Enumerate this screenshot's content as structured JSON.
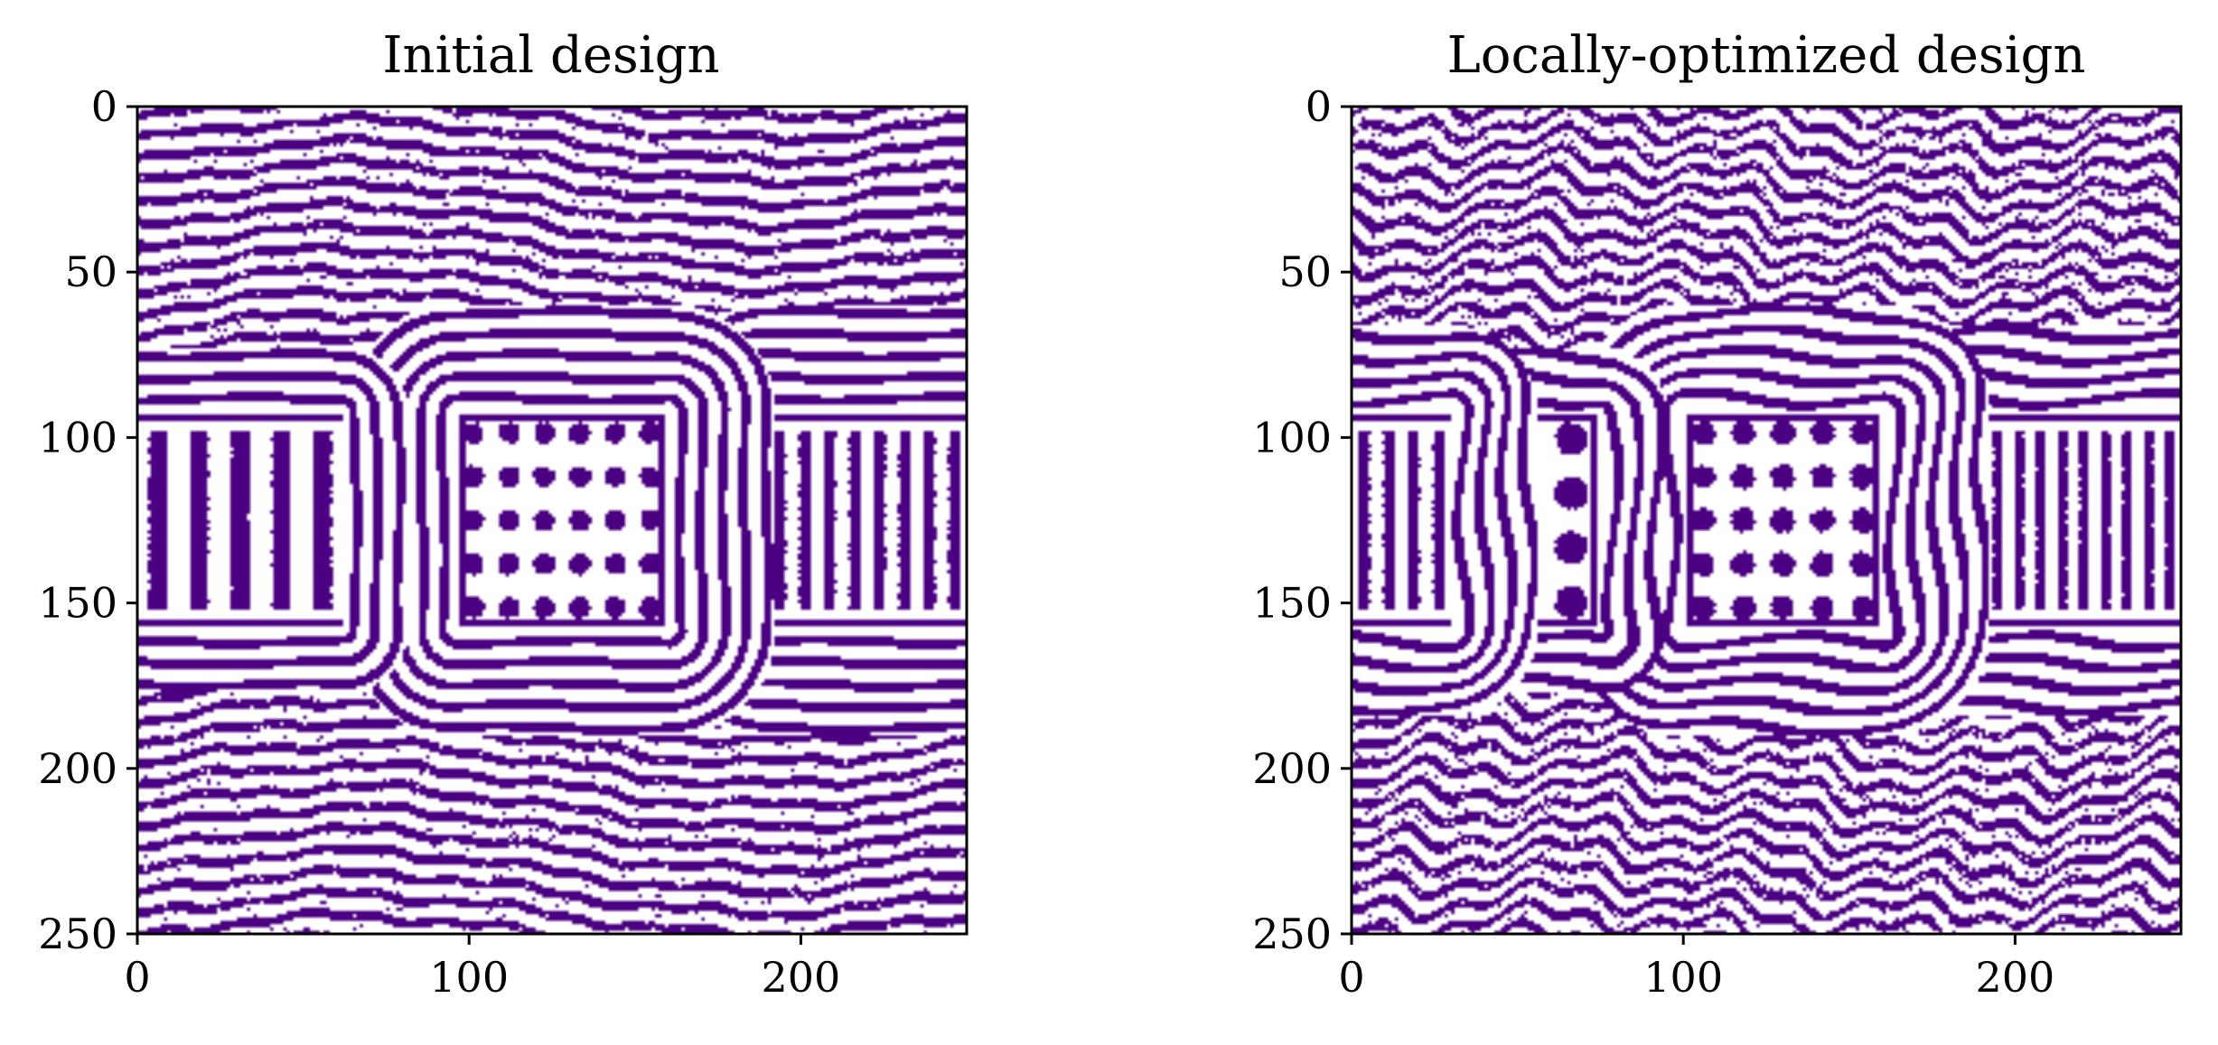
{
  "colors": {
    "ink": "#4b0082",
    "paper": "#ffffff",
    "axis": "#000000"
  },
  "chart_data": [
    {
      "type": "heatmap",
      "title": "Initial design",
      "xlabel": "",
      "ylabel": "",
      "xlim": [
        0,
        250
      ],
      "ylim": [
        250,
        0
      ],
      "x_ticks": [
        0,
        100,
        200
      ],
      "y_ticks": [
        0,
        50,
        100,
        150,
        200,
        250
      ],
      "grid": false,
      "colormap": "binary-purple",
      "pattern": {
        "outer_stripe_period": 6.5,
        "stripe_waviness": 1.0,
        "cells": [
          {
            "kind": "vertical-bars",
            "x_range": [
              0,
              62
            ],
            "y_range": [
              92,
              158
            ],
            "count": 5,
            "ring_count": 3
          },
          {
            "kind": "dots",
            "x_range": [
              96,
              160
            ],
            "y_range": [
              92,
              158
            ],
            "rows": 5,
            "cols": 6,
            "ring_count": 5
          },
          {
            "kind": "vertical-bars",
            "x_range": [
              190,
              250
            ],
            "y_range": [
              92,
              158
            ],
            "count": 8,
            "ring_count": 5
          }
        ]
      }
    },
    {
      "type": "heatmap",
      "title": "Locally-optimized design",
      "xlabel": "",
      "ylabel": "",
      "xlim": [
        0,
        250
      ],
      "ylim": [
        250,
        0
      ],
      "x_ticks": [
        0,
        100,
        200
      ],
      "y_ticks": [
        0,
        50,
        100,
        150,
        200,
        250
      ],
      "grid": false,
      "colormap": "binary-purple",
      "pattern": {
        "outer_stripe_period": 6.5,
        "stripe_waviness": 3.2,
        "cells": [
          {
            "kind": "vertical-bars",
            "x_range": [
              0,
              30
            ],
            "y_range": [
              92,
              158
            ],
            "count": 4,
            "ring_count": 4
          },
          {
            "kind": "dots",
            "x_range": [
              40,
              75
            ],
            "y_range": [
              92,
              158
            ],
            "rows": 4,
            "cols": 2,
            "ring_count": 3
          },
          {
            "kind": "dots",
            "x_range": [
              100,
              160
            ],
            "y_range": [
              92,
              158
            ],
            "rows": 5,
            "cols": 5,
            "ring_count": 5
          },
          {
            "kind": "vertical-bars",
            "x_range": [
              185,
              250
            ],
            "y_range": [
              92,
              158
            ],
            "count": 10,
            "ring_count": 4
          }
        ]
      }
    }
  ]
}
